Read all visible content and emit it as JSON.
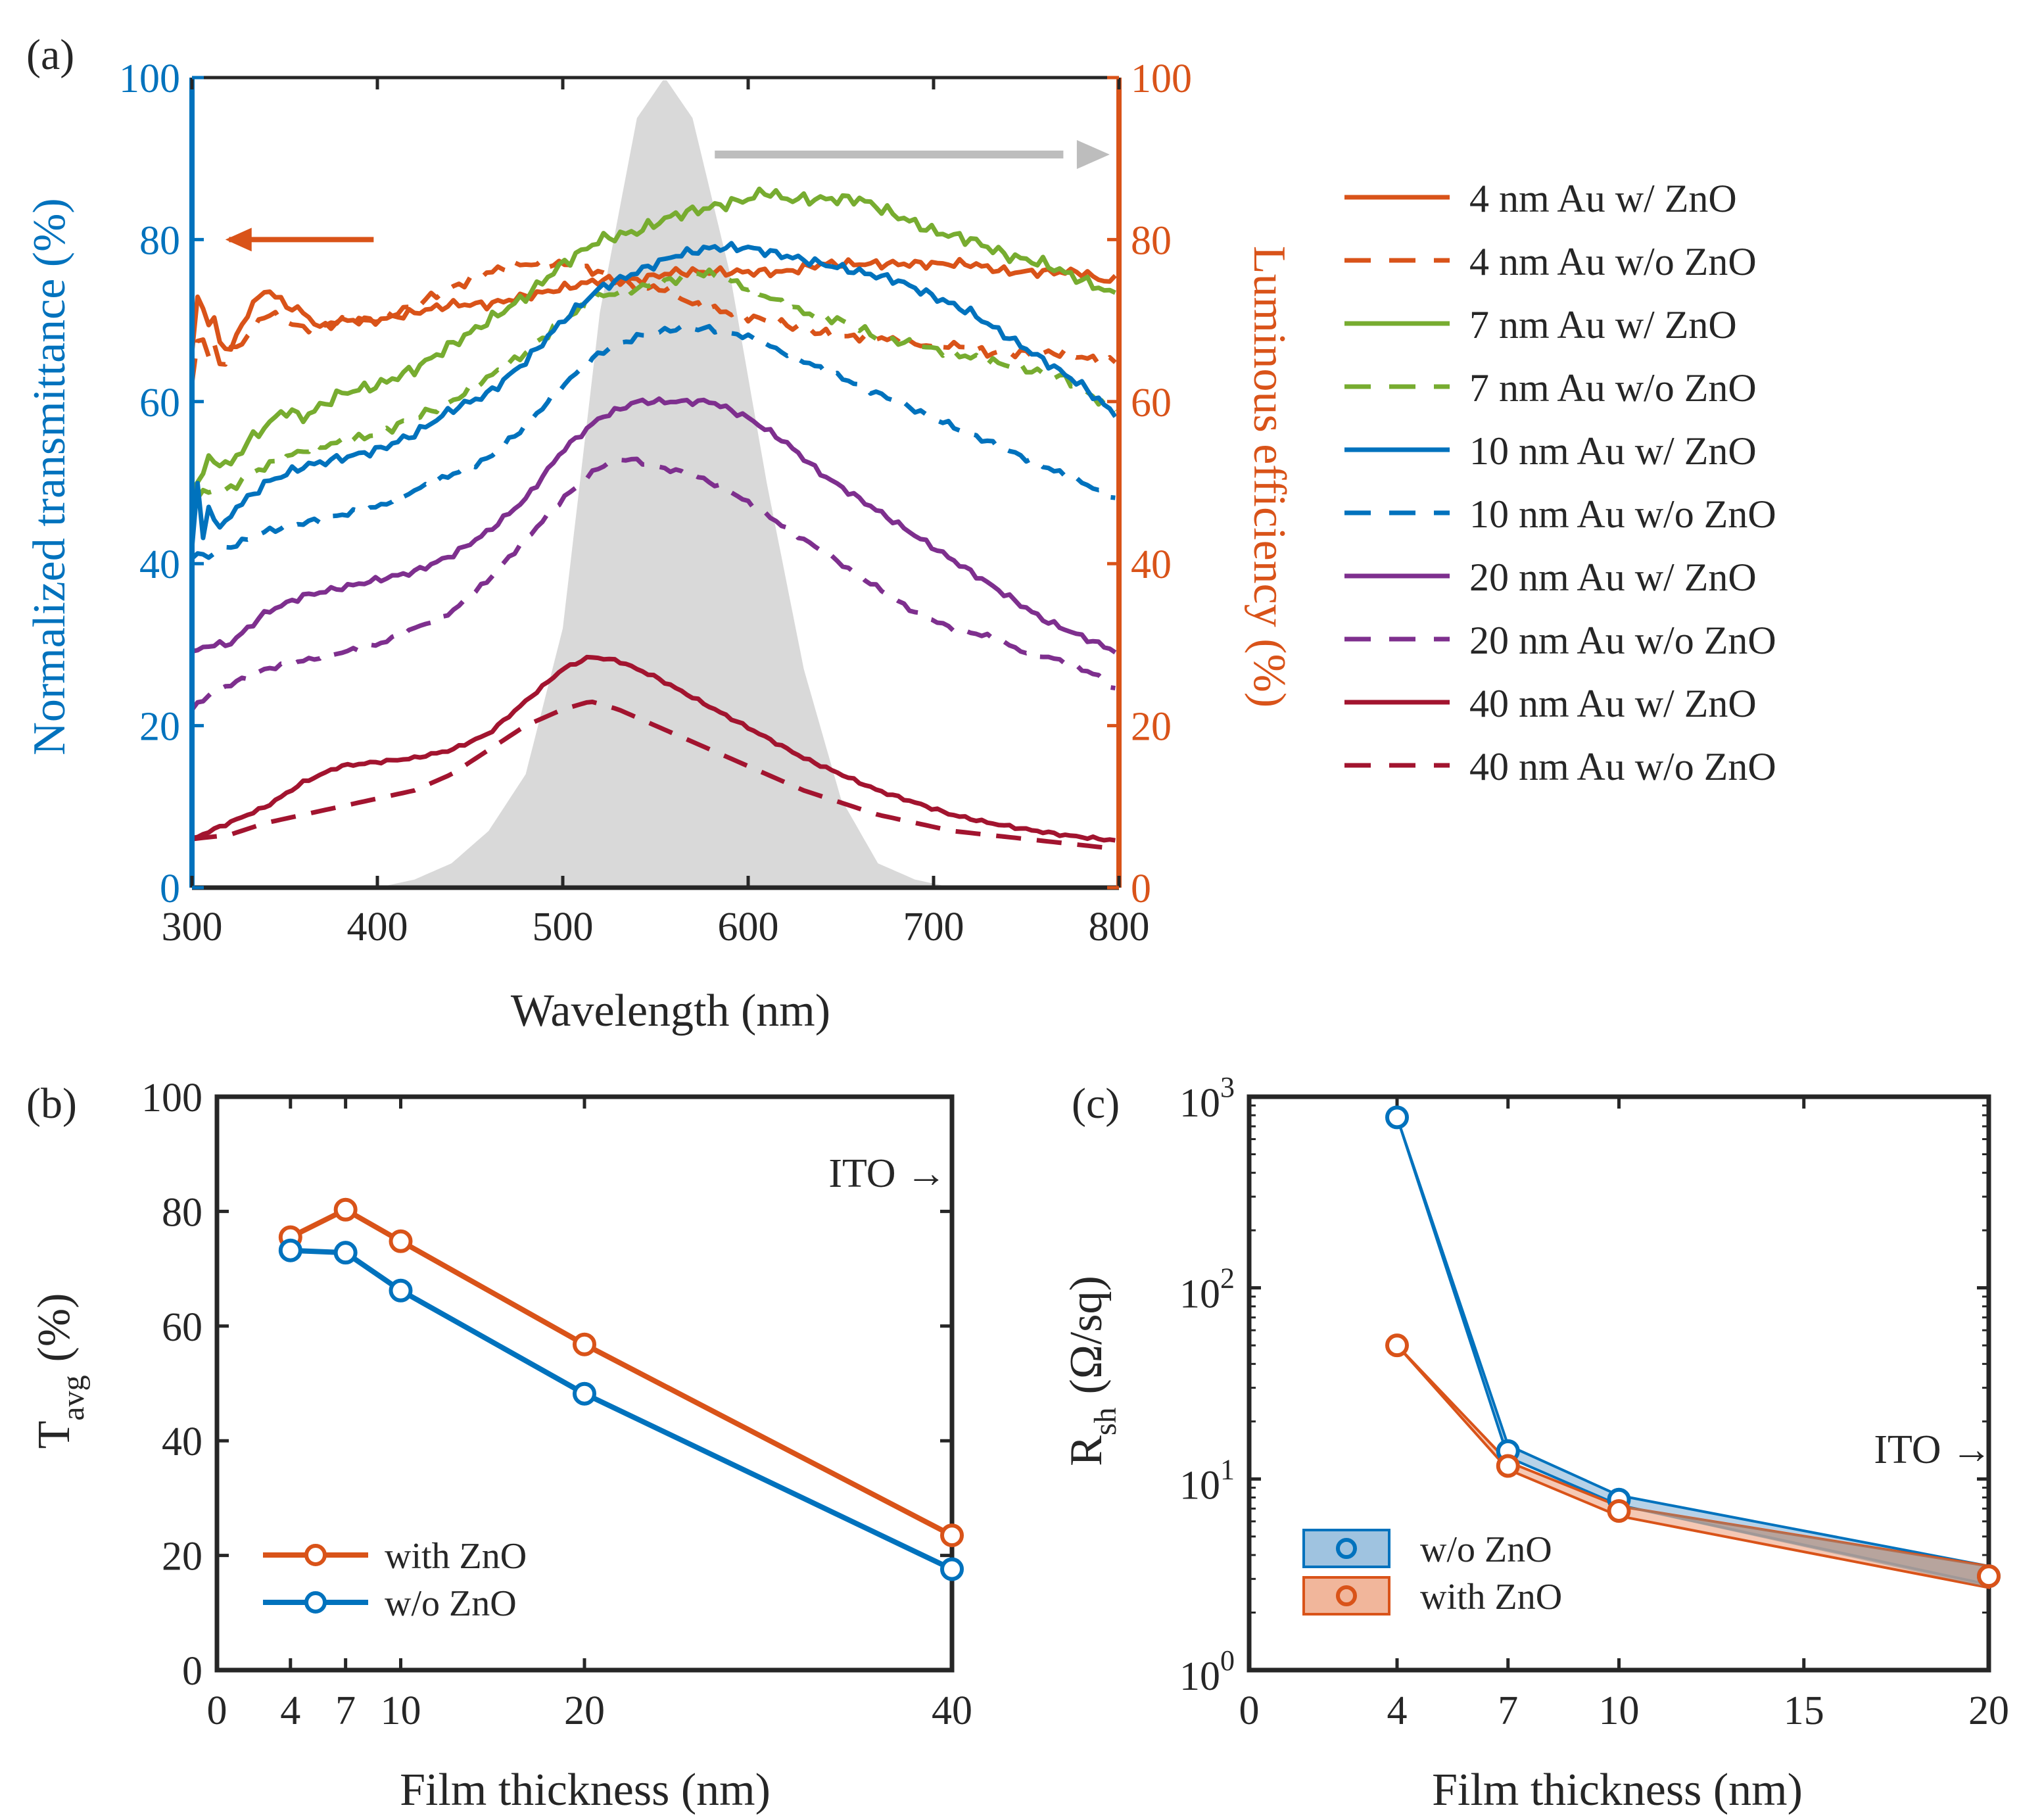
{
  "colors": {
    "orange": "#D95319",
    "blue": "#0072BD",
    "green": "#77AC30",
    "purple": "#7E2F8E",
    "darkred": "#A2142F",
    "gray": "#D9D9D9",
    "black": "#262626"
  },
  "chart_data": [
    {
      "id": "a",
      "type": "line",
      "panel_label": "(a)",
      "xlabel": "Wavelength (nm)",
      "ylabel": "Normalized transmittance (%)",
      "ylabel_right": "Luminous efficiency (%)",
      "xlim": [
        300,
        800
      ],
      "ylim": [
        0,
        100
      ],
      "ylim_right": [
        0,
        100
      ],
      "xticks": [
        "300",
        "400",
        "500",
        "600",
        "700",
        "800"
      ],
      "yticks": [
        "0",
        "20",
        "40",
        "60",
        "80",
        "100"
      ],
      "yticks_right": [
        "0",
        "20",
        "40",
        "60",
        "80",
        "100"
      ],
      "luminous_efficiency": {
        "x": [
          400,
          420,
          440,
          460,
          480,
          500,
          520,
          540,
          555,
          570,
          590,
          610,
          630,
          650,
          670,
          690,
          710
        ],
        "y": [
          0,
          1,
          3,
          7,
          14,
          32,
          71,
          95,
          100,
          95,
          76,
          50,
          27,
          11,
          3,
          1,
          0
        ]
      },
      "series": [
        {
          "name": "4 nm Au w/   ZnO",
          "label": "4 nm Au w/   ZnO",
          "color": "orange",
          "style": "solid",
          "noise": 0.6,
          "x": [
            300,
            304,
            308,
            312,
            316,
            320,
            330,
            340,
            350,
            360,
            370,
            380,
            400,
            420,
            440,
            460,
            480,
            500,
            520,
            540,
            560,
            580,
            600,
            620,
            640,
            660,
            680,
            700,
            720,
            740,
            760,
            780,
            790,
            800
          ],
          "y": [
            66,
            75,
            69,
            70,
            67,
            66,
            71,
            74,
            72,
            71,
            69,
            70,
            70,
            71,
            72,
            72,
            73,
            74,
            75,
            75,
            76,
            76,
            76,
            76,
            77,
            77,
            77,
            77,
            77,
            76,
            76,
            76,
            75,
            75
          ]
        },
        {
          "name": "4 nm Au w/o ZnO",
          "label": "4 nm Au w/o ZnO",
          "color": "orange",
          "style": "dash",
          "noise": 0.6,
          "x": [
            300,
            304,
            308,
            312,
            316,
            320,
            330,
            340,
            350,
            360,
            380,
            400,
            420,
            440,
            460,
            480,
            500,
            520,
            540,
            555,
            570,
            590,
            610,
            630,
            650,
            670,
            690,
            710,
            730,
            750,
            770,
            790,
            800
          ],
          "y": [
            62,
            70,
            65,
            67,
            64,
            66,
            68,
            71,
            70,
            69,
            70,
            70,
            72,
            74,
            76,
            77,
            77,
            76,
            74,
            74,
            72,
            71,
            70,
            69,
            68,
            68,
            67,
            67,
            66,
            66,
            66,
            65,
            65
          ]
        },
        {
          "name": "7 nm Au w/   ZnO",
          "label": "7 nm Au w/   ZnO",
          "color": "green",
          "style": "solid",
          "noise": 0.8,
          "x": [
            300,
            310,
            320,
            330,
            340,
            350,
            360,
            380,
            400,
            420,
            440,
            460,
            480,
            500,
            520,
            540,
            560,
            580,
            600,
            610,
            620,
            640,
            660,
            680,
            700,
            720,
            740,
            760,
            780,
            790,
            800
          ],
          "y": [
            49,
            53,
            52,
            55,
            57,
            59,
            58,
            61,
            62,
            64,
            67,
            70,
            73,
            77,
            80,
            81,
            83,
            84,
            85,
            86,
            85,
            85,
            85,
            83,
            81,
            80,
            78,
            77,
            75,
            74,
            73
          ]
        },
        {
          "name": "7 nm Au w/o ZnO",
          "label": "7 nm Au w/o ZnO",
          "color": "green",
          "style": "dash",
          "noise": 0.6,
          "x": [
            300,
            310,
            320,
            330,
            340,
            360,
            380,
            400,
            420,
            440,
            460,
            480,
            500,
            520,
            540,
            560,
            575,
            590,
            610,
            630,
            650,
            670,
            690,
            710,
            730,
            750,
            770,
            790,
            800
          ],
          "y": [
            48,
            49,
            49,
            51,
            52,
            54,
            55,
            56,
            58,
            60,
            63,
            66,
            70,
            73,
            74,
            75,
            76,
            75,
            73,
            71,
            70,
            68,
            67,
            66,
            65,
            64,
            63,
            60,
            59
          ]
        },
        {
          "name": "10 nm Au w/   ZnO",
          "label": "10 nm Au w/   ZnO",
          "color": "blue",
          "style": "solid",
          "noise": 0.6,
          "x": [
            300,
            303,
            306,
            310,
            314,
            318,
            324,
            330,
            340,
            350,
            360,
            380,
            400,
            420,
            440,
            460,
            480,
            500,
            520,
            540,
            560,
            580,
            600,
            620,
            640,
            660,
            680,
            700,
            720,
            740,
            760,
            780,
            800
          ],
          "y": [
            42,
            50,
            43,
            48,
            44,
            45,
            47,
            48,
            50,
            51,
            52,
            53,
            54,
            56,
            59,
            61,
            65,
            70,
            74,
            76,
            78,
            79,
            79,
            78,
            77,
            76,
            75,
            73,
            71,
            68,
            65,
            62,
            58
          ]
        },
        {
          "name": "10 nm Au w/o ZnO",
          "label": "10 nm Au w/o ZnO",
          "color": "blue",
          "style": "dash",
          "noise": 0.4,
          "x": [
            300,
            310,
            320,
            340,
            360,
            380,
            400,
            420,
            440,
            460,
            480,
            500,
            520,
            540,
            560,
            580,
            600,
            620,
            640,
            660,
            680,
            700,
            720,
            740,
            760,
            780,
            800
          ],
          "y": [
            41,
            41,
            42,
            44,
            45,
            46,
            47,
            49,
            51,
            53,
            57,
            62,
            66,
            68,
            69,
            69,
            68,
            66,
            64,
            62,
            60,
            58,
            56,
            54,
            52,
            50,
            48
          ]
        },
        {
          "name": "20 nm Au w/   ZnO",
          "label": "20 nm Au w/   ZnO",
          "color": "purple",
          "style": "solid",
          "noise": 0.4,
          "x": [
            300,
            310,
            320,
            330,
            340,
            360,
            380,
            400,
            420,
            440,
            460,
            480,
            500,
            520,
            540,
            560,
            580,
            600,
            620,
            640,
            660,
            680,
            700,
            720,
            740,
            760,
            780,
            800
          ],
          "y": [
            29,
            30,
            30,
            32,
            34,
            36,
            37,
            38,
            39,
            41,
            44,
            48,
            54,
            58,
            60,
            60,
            60,
            58,
            55,
            51,
            48,
            45,
            42,
            39,
            36,
            33,
            31,
            29
          ]
        },
        {
          "name": "20 nm Au w/o ZnO",
          "label": "20 nm Au w/o ZnO",
          "color": "purple",
          "style": "dash",
          "noise": 0.3,
          "x": [
            300,
            310,
            320,
            340,
            360,
            380,
            400,
            420,
            440,
            460,
            480,
            500,
            520,
            535,
            550,
            570,
            590,
            610,
            630,
            650,
            670,
            690,
            710,
            730,
            750,
            770,
            790,
            800
          ],
          "y": [
            22,
            24,
            25,
            27,
            28,
            29,
            30,
            32,
            34,
            38,
            43,
            48,
            52,
            53,
            52,
            51,
            49,
            46,
            43,
            40,
            37,
            34,
            32,
            31,
            29,
            28,
            26,
            24
          ]
        },
        {
          "name": "40 nm Au w/   ZnO",
          "label": "40 nm Au w/   ZnO",
          "color": "darkred",
          "style": "solid",
          "noise": 0.2,
          "x": [
            300,
            310,
            320,
            340,
            360,
            380,
            400,
            420,
            440,
            460,
            480,
            500,
            515,
            530,
            550,
            570,
            590,
            610,
            630,
            650,
            670,
            690,
            710,
            730,
            750,
            770,
            790,
            800
          ],
          "y": [
            6,
            7,
            8,
            10,
            13,
            15,
            15.5,
            16,
            17,
            19,
            23,
            27,
            28.5,
            28,
            26,
            23.5,
            21,
            18.5,
            16,
            14,
            12,
            10.5,
            9,
            8,
            7.2,
            6.5,
            6,
            5.8
          ]
        },
        {
          "name": "40 nm Au w/o ZnO",
          "label": "40 nm Au w/o ZnO",
          "color": "darkred",
          "style": "dash",
          "noise": 0,
          "x": [
            300,
            320,
            340,
            360,
            380,
            400,
            420,
            440,
            460,
            480,
            500,
            515,
            530,
            550,
            570,
            590,
            610,
            630,
            650,
            670,
            690,
            710,
            730,
            750,
            770,
            790,
            800
          ],
          "y": [
            6,
            6.5,
            8,
            9,
            10,
            11,
            12,
            14,
            17,
            20,
            22,
            23,
            22,
            20,
            18,
            16,
            14,
            12,
            10.5,
            9,
            8,
            7,
            6.5,
            6,
            5.5,
            5,
            4.8
          ]
        }
      ],
      "annotations": {
        "left_arrow": "transmittance axis",
        "right_arrow": "luminous efficiency axis"
      }
    },
    {
      "id": "b",
      "type": "line",
      "panel_label": "(b)",
      "xlabel": "Film thickness (nm)",
      "ylabel_main": "T",
      "ylabel_sub": "avg",
      "ylabel_unit": "(%)",
      "xlim": [
        0,
        40
      ],
      "ylim": [
        0,
        100
      ],
      "xticks": [
        "0",
        "4",
        "7",
        "10",
        "20",
        "40"
      ],
      "yticks": [
        "0",
        "20",
        "40",
        "60",
        "80",
        "100"
      ],
      "ito_label": "ITO →",
      "series": [
        {
          "name": "with ZnO",
          "label": "with ZnO",
          "color": "orange",
          "x": [
            4,
            7,
            10,
            20,
            40
          ],
          "values": [
            75.5,
            80.3,
            74.8,
            56.8,
            23.5
          ]
        },
        {
          "name": "w/o  ZnO",
          "label": "w/o  ZnO",
          "color": "blue",
          "x": [
            4,
            7,
            10,
            20,
            40
          ],
          "values": [
            73.2,
            72.8,
            66.2,
            48.2,
            17.6
          ]
        }
      ]
    },
    {
      "id": "c",
      "type": "line",
      "panel_label": "(c)",
      "xlabel": "Film thickness (nm)",
      "ylabel_main": "R",
      "ylabel_sub": "sh",
      "ylabel_unit": "(Ω/sq)",
      "yscale": "log",
      "xlim": [
        0,
        20
      ],
      "ylim": [
        1,
        1000
      ],
      "xticks": [
        "0",
        "4",
        "7",
        "10",
        "15",
        "20"
      ],
      "yticks": [
        "10",
        "10",
        "10",
        "10"
      ],
      "yticks_exp": [
        "0",
        "1",
        "2",
        "3"
      ],
      "ito_label": "ITO →",
      "series": [
        {
          "name": "w/o  ZnO",
          "label": "w/o  ZnO",
          "color": "blue",
          "x": [
            4,
            7,
            10,
            20
          ],
          "values": [
            780,
            14,
            7.8,
            3.1
          ],
          "upper": [
            780,
            15,
            8.2,
            3.5
          ],
          "lower": [
            780,
            13,
            7.3,
            2.8
          ]
        },
        {
          "name": "with ZnO",
          "label": "with ZnO",
          "color": "orange",
          "x": [
            4,
            7,
            10,
            20
          ],
          "values": [
            50,
            11.7,
            6.8,
            3.1
          ],
          "upper": [
            50,
            12.3,
            7.2,
            3.5
          ],
          "lower": [
            50,
            11.2,
            6.4,
            2.7
          ]
        }
      ]
    }
  ]
}
